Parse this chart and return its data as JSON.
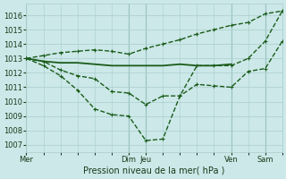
{
  "background_color": "#cce8e8",
  "grid_color": "#aacece",
  "line_color": "#1a5c1a",
  "title": "Pression niveau de la mer( hPa )",
  "ylim": [
    1006.5,
    1016.8
  ],
  "yticks": [
    1007,
    1008,
    1009,
    1010,
    1011,
    1012,
    1013,
    1014,
    1015,
    1016
  ],
  "day_labels": [
    "Mer",
    "Dim",
    "Jeu",
    "Ven",
    "Sam"
  ],
  "day_positions": [
    0,
    72,
    84,
    144,
    168
  ],
  "xlim": [
    0,
    180
  ],
  "line_upper_x": [
    0,
    12,
    24,
    36,
    48,
    60,
    72,
    84,
    96,
    108,
    120,
    132,
    144,
    156,
    168,
    180
  ],
  "line_upper_y": [
    1013.0,
    1013.2,
    1013.4,
    1013.5,
    1013.6,
    1013.5,
    1013.3,
    1013.7,
    1014.0,
    1014.3,
    1014.7,
    1015.0,
    1015.3,
    1015.5,
    1016.1,
    1016.3
  ],
  "line_flat_x": [
    0,
    12,
    24,
    36,
    48,
    60,
    72,
    84,
    96,
    108,
    120,
    132,
    144
  ],
  "line_flat_y": [
    1013.0,
    1012.8,
    1012.7,
    1012.7,
    1012.6,
    1012.5,
    1012.5,
    1012.5,
    1012.5,
    1012.6,
    1012.5,
    1012.5,
    1012.6
  ],
  "line_dip_x": [
    0,
    12,
    24,
    36,
    48,
    60,
    72,
    84,
    96,
    108,
    120,
    132,
    144,
    156,
    168,
    180
  ],
  "line_dip_y": [
    1013.0,
    1012.8,
    1012.2,
    1011.8,
    1011.6,
    1010.7,
    1010.6,
    1009.8,
    1010.4,
    1010.4,
    1011.2,
    1011.1,
    1011.0,
    1012.1,
    1012.3,
    1014.2
  ],
  "line_deep_x": [
    0,
    12,
    24,
    36,
    48,
    60,
    72,
    84,
    96,
    108,
    120,
    132,
    144,
    156,
    168,
    180
  ],
  "line_deep_y": [
    1013.0,
    1012.5,
    1011.8,
    1010.8,
    1009.5,
    1009.1,
    1009.0,
    1007.3,
    1007.4,
    1010.4,
    1012.5,
    1012.5,
    1012.5,
    1013.0,
    1014.2,
    1016.3
  ],
  "marker_size": 3.5,
  "linewidth": 1.0
}
